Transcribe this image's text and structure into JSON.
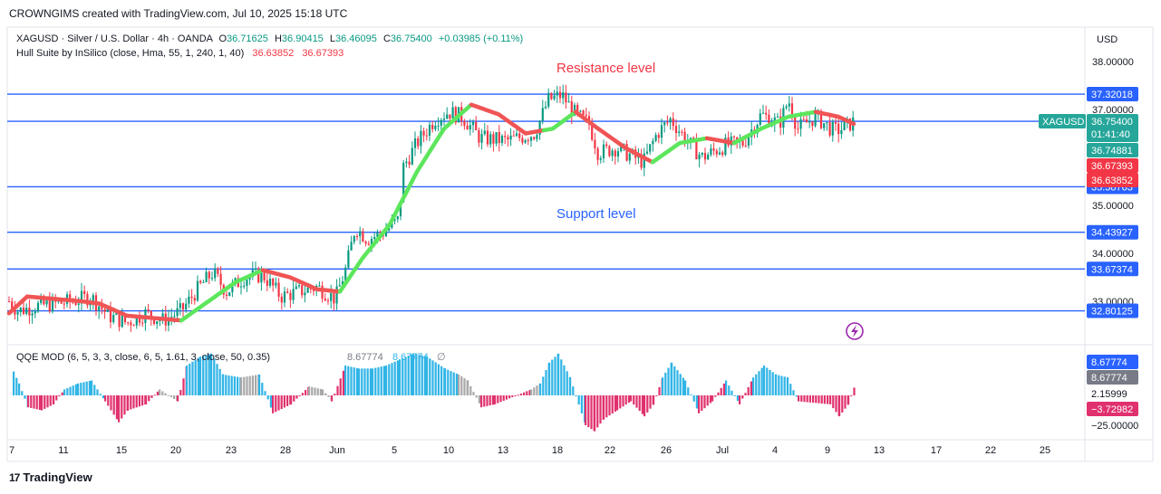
{
  "header": {
    "created_by": "CROWNGIMS created with TradingView.com, Jul 10, 2025 15:18 UTC"
  },
  "legend": {
    "symbol": "XAGUSD · Silver / U.S. Dollar · 4h · OANDA",
    "o_label": "O",
    "o_value": "36.71625",
    "h_label": "H",
    "h_value": "36.90415",
    "l_label": "L",
    "l_value": "36.46095",
    "c_label": "C",
    "c_value": "36.75400",
    "change": "+0.03985 (+0.11%)",
    "indicator": "Hull Suite by InSilico (close, Hma, 55, 1, 240, 1, 40)",
    "ind_v1": "36.63852",
    "ind_v2": "36.67393"
  },
  "annotations": {
    "resistance": "Resistance level",
    "support": "Support level"
  },
  "qqe": {
    "label": "QQE MOD (6, 5, 3, 3, close, 6, 5, 1.61, 3, close, 50, 0.35)",
    "v1": "8.67774",
    "v2": "8.67774",
    "axis": [
      "8.67774",
      "8.67774",
      "2.15999",
      "−3.72982",
      "−25.00000"
    ]
  },
  "price_axis": {
    "currency": "USD",
    "ticks": [
      "38.00000",
      "37.00000",
      "35.00000",
      "34.00000",
      "33.00000"
    ],
    "levels": [
      "37.32018",
      "35.38763",
      "34.43927",
      "33.67374",
      "32.80125"
    ],
    "current_symbol": "XAGUSD",
    "current_price": "36.75400",
    "countdown": "01:41:40",
    "price_label_2": "36.74881",
    "hull_labels": [
      "36.67393",
      "36.63852"
    ]
  },
  "time_axis": [
    "7",
    "11",
    "15",
    "20",
    "23",
    "28",
    "Jun",
    "5",
    "10",
    "13",
    "18",
    "22",
    "26",
    "Jul",
    "4",
    "9",
    "13",
    "17",
    "22",
    "25"
  ],
  "footer": {
    "brand": "TradingView"
  },
  "colors": {
    "level_line": "#2962ff",
    "up": "#089981",
    "down": "#f23645",
    "hull_up": "#5ce65c",
    "hull_down": "#f05454",
    "qqe_up": "#2fb4e6",
    "qqe_down": "#e0316e",
    "qqe_grey": "#a8a8a8",
    "label_red": "#f23645",
    "label_blue": "#2962ff",
    "label_teal": "#26a69a",
    "label_grey": "#787b86"
  },
  "chart_data": {
    "type": "candlestick",
    "y_axis_ticks": [
      38,
      37,
      35,
      34,
      33
    ],
    "horizontal_levels": [
      37.32018,
      36.754,
      35.38763,
      34.43927,
      33.67374,
      32.80125
    ],
    "price_path": [
      [
        0,
        33.2
      ],
      [
        20,
        32.8
      ],
      [
        40,
        32.9
      ],
      [
        60,
        32.95
      ],
      [
        80,
        33.0
      ],
      [
        100,
        33.1
      ],
      [
        120,
        32.7
      ],
      [
        140,
        32.55
      ],
      [
        160,
        32.75
      ],
      [
        180,
        32.6
      ],
      [
        200,
        32.8
      ],
      [
        220,
        33.3
      ],
      [
        235,
        33.6
      ],
      [
        250,
        33.2
      ],
      [
        270,
        33.5
      ],
      [
        290,
        33.55
      ],
      [
        310,
        33.1
      ],
      [
        330,
        33.2
      ],
      [
        350,
        33.3
      ],
      [
        370,
        33.05
      ],
      [
        382,
        33.7
      ],
      [
        392,
        34.55
      ],
      [
        405,
        34.3
      ],
      [
        420,
        34.4
      ],
      [
        440,
        34.7
      ],
      [
        445,
        35.8
      ],
      [
        460,
        36.3
      ],
      [
        480,
        36.8
      ],
      [
        495,
        36.95
      ],
      [
        510,
        36.85
      ],
      [
        530,
        36.4
      ],
      [
        560,
        36.35
      ],
      [
        590,
        36.5
      ],
      [
        605,
        37.2
      ],
      [
        620,
        37.3
      ],
      [
        635,
        36.9
      ],
      [
        650,
        36.7
      ],
      [
        660,
        36.1
      ],
      [
        680,
        36.2
      ],
      [
        700,
        36.0
      ],
      [
        710,
        35.9
      ],
      [
        725,
        36.5
      ],
      [
        740,
        36.8
      ],
      [
        760,
        36.3
      ],
      [
        775,
        36.0
      ],
      [
        800,
        36.25
      ],
      [
        820,
        36.3
      ],
      [
        840,
        36.9
      ],
      [
        860,
        36.7
      ],
      [
        870,
        37.2
      ],
      [
        880,
        36.6
      ],
      [
        900,
        36.85
      ],
      [
        920,
        36.55
      ],
      [
        930,
        36.6
      ],
      [
        942,
        36.75
      ]
    ],
    "hull_path": [
      [
        10,
        32.75
      ],
      [
        30,
        33.1
      ],
      [
        60,
        33.05
      ],
      [
        90,
        33.0
      ],
      [
        110,
        32.95
      ],
      [
        140,
        32.7
      ],
      [
        170,
        32.65
      ],
      [
        200,
        32.6
      ],
      [
        230,
        33.0
      ],
      [
        260,
        33.4
      ],
      [
        290,
        33.65
      ],
      [
        320,
        33.5
      ],
      [
        350,
        33.25
      ],
      [
        375,
        33.2
      ],
      [
        400,
        33.9
      ],
      [
        430,
        34.6
      ],
      [
        460,
        35.7
      ],
      [
        490,
        36.6
      ],
      [
        520,
        37.1
      ],
      [
        550,
        36.9
      ],
      [
        580,
        36.5
      ],
      [
        610,
        36.6
      ],
      [
        635,
        36.95
      ],
      [
        660,
        36.6
      ],
      [
        690,
        36.2
      ],
      [
        720,
        35.9
      ],
      [
        750,
        36.3
      ],
      [
        780,
        36.4
      ],
      [
        810,
        36.3
      ],
      [
        840,
        36.6
      ],
      [
        870,
        36.85
      ],
      [
        900,
        36.95
      ],
      [
        925,
        36.85
      ],
      [
        942,
        36.7
      ]
    ],
    "hull_segments": [
      {
        "from": 10,
        "to": 110,
        "trend": "down"
      },
      {
        "from": 110,
        "to": 200,
        "trend": "down"
      },
      {
        "from": 200,
        "to": 290,
        "trend": "up"
      },
      {
        "from": 290,
        "to": 375,
        "trend": "down"
      },
      {
        "from": 375,
        "to": 520,
        "trend": "up"
      },
      {
        "from": 520,
        "to": 600,
        "trend": "down"
      },
      {
        "from": 600,
        "to": 635,
        "trend": "up"
      },
      {
        "from": 635,
        "to": 720,
        "trend": "down"
      },
      {
        "from": 720,
        "to": 780,
        "trend": "up"
      },
      {
        "from": 780,
        "to": 810,
        "trend": "down"
      },
      {
        "from": 810,
        "to": 900,
        "trend": "up"
      },
      {
        "from": 900,
        "to": 942,
        "trend": "down"
      }
    ],
    "qqe_hist": [
      [
        14,
        8,
        "u"
      ],
      [
        20,
        4,
        "u"
      ],
      [
        30,
        -4,
        "d"
      ],
      [
        45,
        -5,
        "d"
      ],
      [
        58,
        -3,
        "d"
      ],
      [
        70,
        2,
        "u"
      ],
      [
        85,
        4,
        "u"
      ],
      [
        100,
        5,
        "u"
      ],
      [
        115,
        -2,
        "d"
      ],
      [
        130,
        -9,
        "d"
      ],
      [
        140,
        -5,
        "d"
      ],
      [
        160,
        -3,
        "d"
      ],
      [
        175,
        2,
        "g"
      ],
      [
        195,
        -2,
        "d"
      ],
      [
        205,
        10,
        "u"
      ],
      [
        220,
        13,
        "u"
      ],
      [
        232,
        14,
        "u"
      ],
      [
        245,
        7,
        "u"
      ],
      [
        265,
        6,
        "g"
      ],
      [
        285,
        7,
        "u"
      ],
      [
        300,
        -6,
        "d"
      ],
      [
        320,
        -3,
        "d"
      ],
      [
        340,
        3,
        "g"
      ],
      [
        355,
        2,
        "g"
      ],
      [
        365,
        -2,
        "d"
      ],
      [
        380,
        10,
        "u"
      ],
      [
        395,
        9,
        "u"
      ],
      [
        410,
        9,
        "u"
      ],
      [
        425,
        10,
        "u"
      ],
      [
        440,
        12,
        "u"
      ],
      [
        455,
        14,
        "u"
      ],
      [
        470,
        13,
        "u"
      ],
      [
        490,
        9,
        "u"
      ],
      [
        505,
        7,
        "g"
      ],
      [
        515,
        5,
        "g"
      ],
      [
        530,
        -4,
        "d"
      ],
      [
        545,
        -3,
        "d"
      ],
      [
        585,
        2,
        "g"
      ],
      [
        595,
        4,
        "u"
      ],
      [
        605,
        11,
        "u"
      ],
      [
        615,
        14,
        "u"
      ],
      [
        628,
        6,
        "u"
      ],
      [
        645,
        -10,
        "d"
      ],
      [
        655,
        -12,
        "d"
      ],
      [
        665,
        -8,
        "d"
      ],
      [
        680,
        -5,
        "d"
      ],
      [
        695,
        -2,
        "d"
      ],
      [
        710,
        -7,
        "d"
      ],
      [
        720,
        -3,
        "d"
      ],
      [
        730,
        6,
        "u"
      ],
      [
        740,
        11,
        "u"
      ],
      [
        755,
        5,
        "u"
      ],
      [
        770,
        -6,
        "d"
      ],
      [
        785,
        -2,
        "d"
      ],
      [
        800,
        5,
        "u"
      ],
      [
        815,
        -3,
        "d"
      ],
      [
        830,
        6,
        "u"
      ],
      [
        842,
        10,
        "u"
      ],
      [
        855,
        7,
        "u"
      ],
      [
        868,
        6,
        "u"
      ],
      [
        880,
        -2,
        "d"
      ],
      [
        915,
        -3,
        "d"
      ],
      [
        925,
        -7,
        "d"
      ],
      [
        935,
        -3,
        "d"
      ],
      [
        943,
        4,
        "u"
      ]
    ]
  }
}
